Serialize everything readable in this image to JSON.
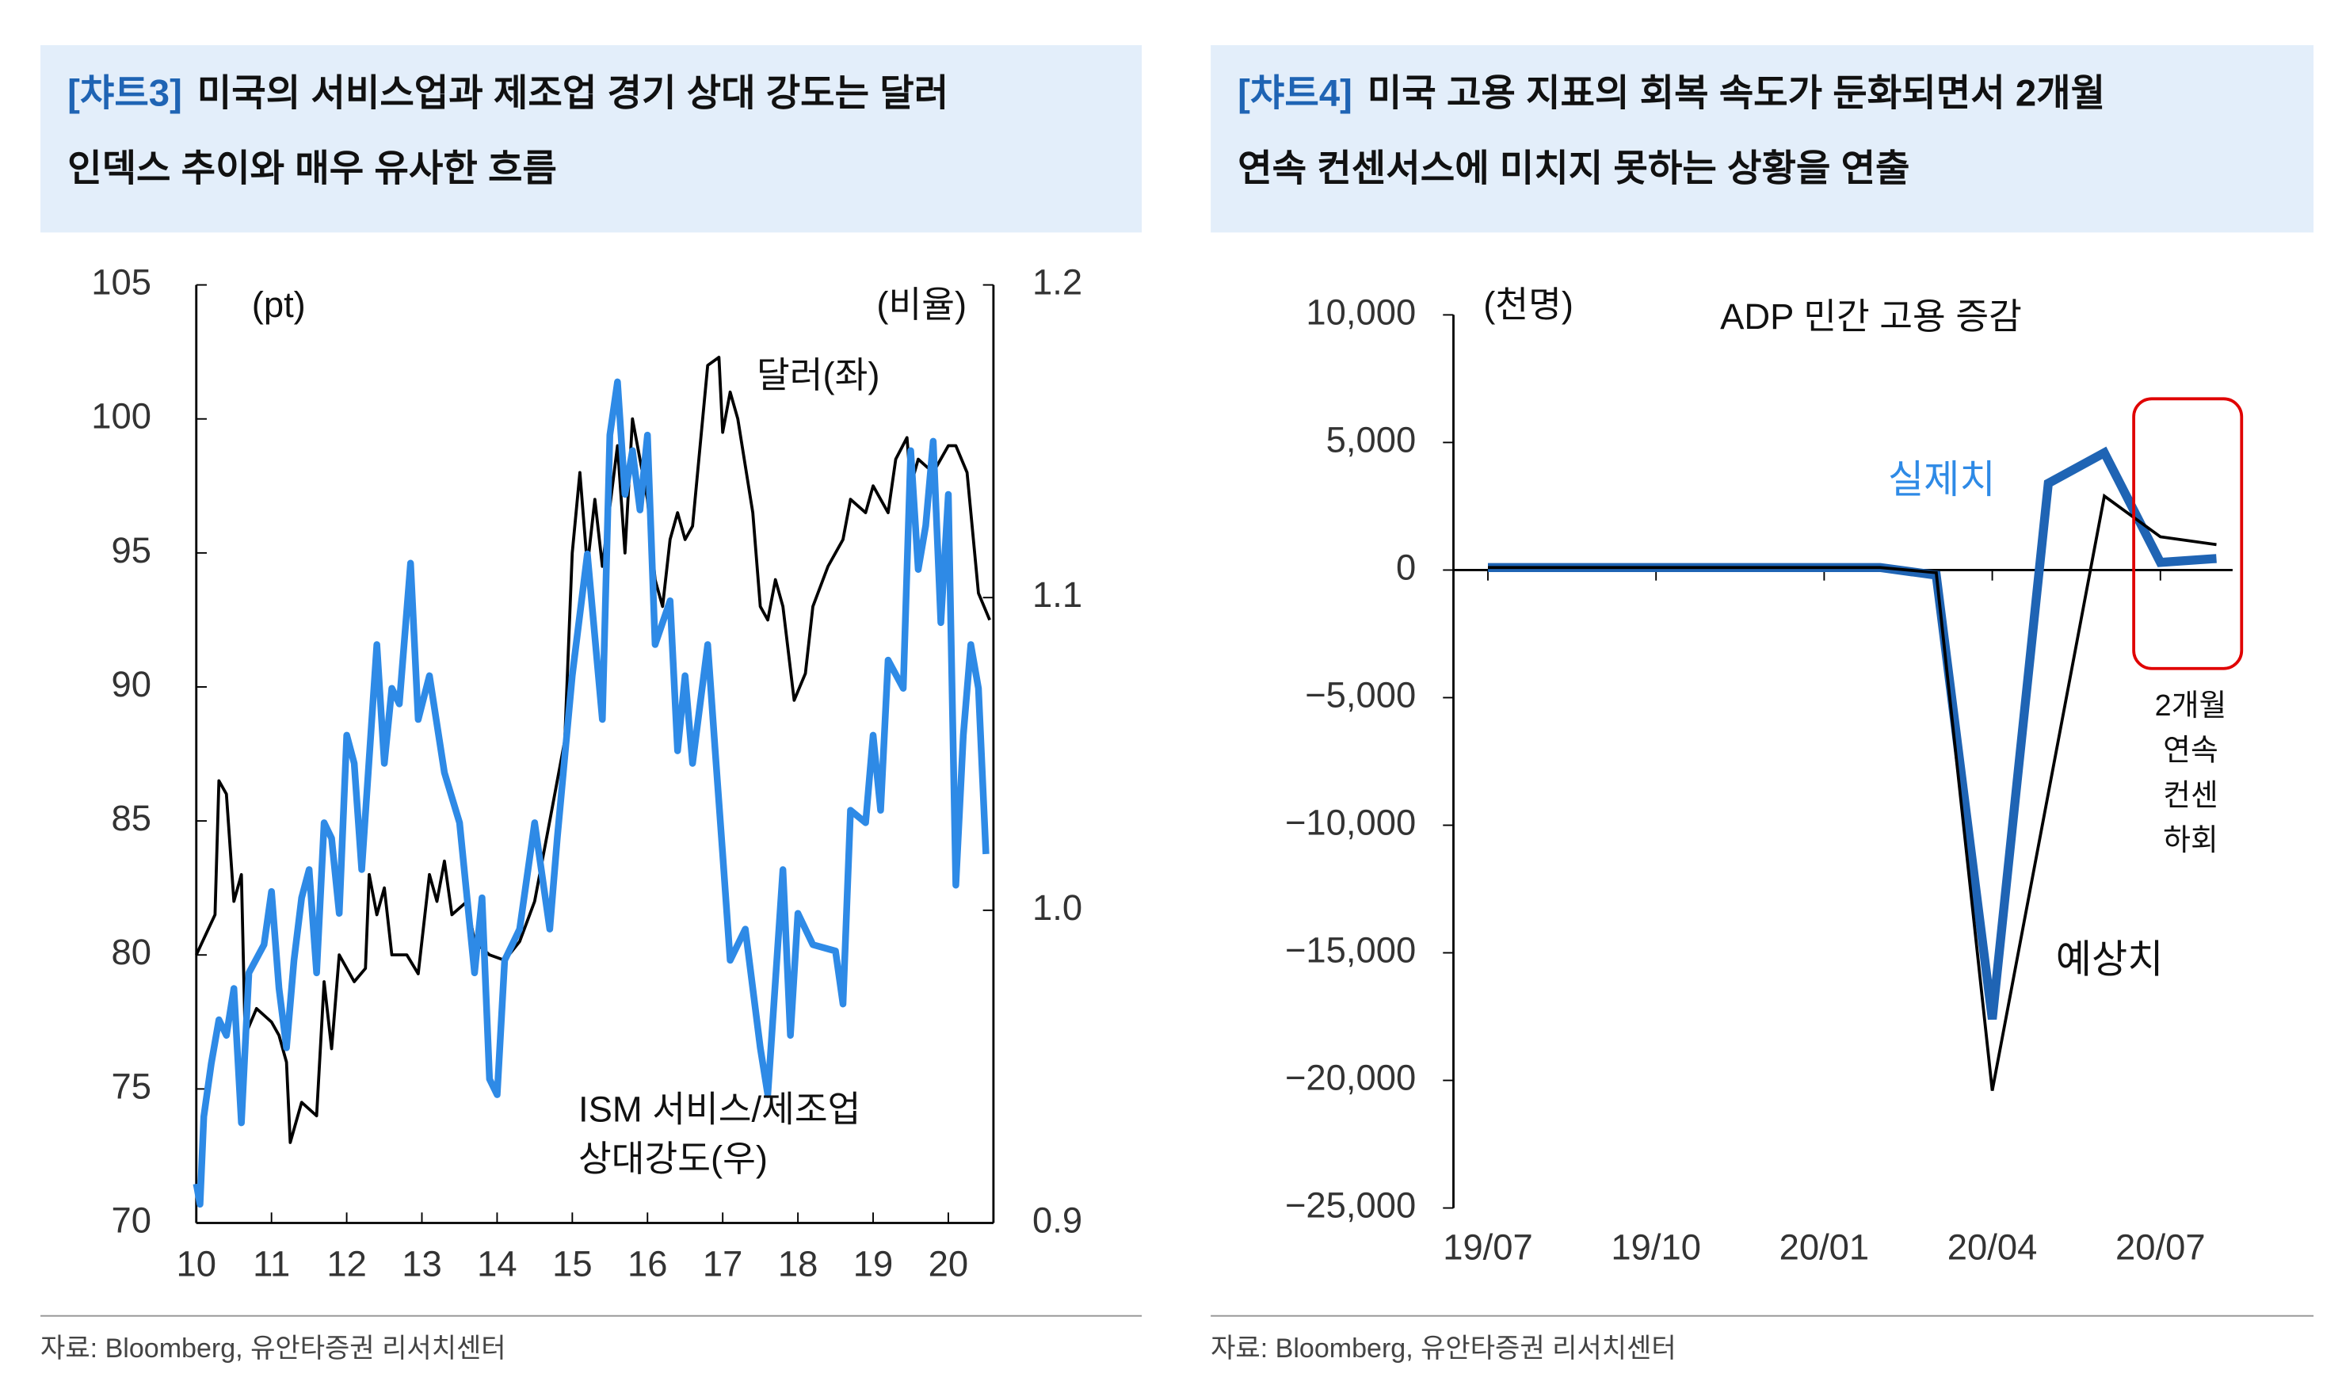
{
  "chart_data": [
    {
      "type": "line",
      "label": "[챠트3]",
      "title": [
        "미국의 서비스업과 제조업 경기 상대 강도는 달러",
        "인덱스 추이와 매우 유사한 흐름"
      ],
      "source": "자료: Bloomberg, 유안타증권 리서치센터",
      "annotations": [
        [
          "(pt)"
        ],
        [
          "(비율)"
        ],
        [
          "달러(좌)"
        ],
        [
          "ISM 서비스/제조업",
          "상대강도(우)"
        ]
      ],
      "xlim": [
        10,
        20.6
      ],
      "xticks": [
        10,
        11,
        12,
        13,
        14,
        15,
        16,
        17,
        18,
        19,
        20
      ],
      "ylim": [
        70,
        105
      ],
      "yticks": [
        70,
        75,
        80,
        85,
        90,
        95,
        100,
        105
      ],
      "y2lim": [
        0.9,
        1.2
      ],
      "y2ticks": [
        0.9,
        {
          "value": 1,
          "label": "1.0"
        },
        1.1,
        1.2
      ],
      "series": [
        {
          "name": "달러(좌)",
          "color": "#000000",
          "x": [
            10.0,
            10.25,
            10.3,
            10.4,
            10.5,
            10.6,
            10.65,
            10.8,
            11.0,
            11.1,
            11.2,
            11.25,
            11.4,
            11.6,
            11.7,
            11.8,
            11.9,
            12.1,
            12.25,
            12.3,
            12.4,
            12.5,
            12.6,
            12.8,
            12.95,
            13.1,
            13.2,
            13.3,
            13.4,
            13.6,
            13.7,
            13.9,
            14.1,
            14.3,
            14.5,
            14.7,
            14.9,
            15.0,
            15.1,
            15.2,
            15.3,
            15.4,
            15.6,
            15.7,
            15.8,
            15.9,
            16.0,
            16.1,
            16.2,
            16.3,
            16.4,
            16.5,
            16.6,
            16.8,
            16.95,
            17.0,
            17.1,
            17.2,
            17.4,
            17.5,
            17.6,
            17.7,
            17.8,
            17.95,
            18.1,
            18.2,
            18.4,
            18.6,
            18.7,
            18.9,
            19.0,
            19.2,
            19.3,
            19.45,
            19.5,
            19.6,
            19.8,
            20.0,
            20.1,
            20.25,
            20.4,
            20.55
          ],
          "values": [
            80,
            81.5,
            86.5,
            86,
            82,
            83,
            77,
            78,
            77.5,
            77,
            76,
            73,
            74.5,
            74,
            79,
            76.5,
            80,
            79,
            79.5,
            83,
            81.5,
            82.5,
            80,
            80,
            79.3,
            83,
            82,
            83.5,
            81.5,
            82,
            80.5,
            80,
            79.8,
            80.5,
            82,
            85,
            88,
            95,
            98,
            94.5,
            97,
            94.5,
            99,
            95,
            100,
            98.5,
            97,
            94,
            93,
            95.5,
            96.5,
            95.5,
            96,
            102,
            102.3,
            99.5,
            101,
            100,
            96.5,
            93,
            92.5,
            94,
            93,
            89.5,
            90.5,
            93,
            94.5,
            95.5,
            97,
            96.5,
            97.5,
            96.5,
            98.5,
            99.3,
            97.5,
            98.5,
            98,
            99,
            99,
            98,
            93.5,
            92.5
          ]
        },
        {
          "name": "ISM 서비스/제조업 상대강도(우)",
          "color": "#2e8ae6",
          "axis": "y2",
          "x": [
            10.0,
            10.05,
            10.1,
            10.2,
            10.3,
            10.4,
            10.5,
            10.6,
            10.7,
            10.9,
            11.0,
            11.1,
            11.2,
            11.3,
            11.4,
            11.5,
            11.6,
            11.7,
            11.8,
            11.9,
            12.0,
            12.1,
            12.2,
            12.4,
            12.5,
            12.6,
            12.7,
            12.85,
            12.95,
            13.1,
            13.3,
            13.5,
            13.7,
            13.8,
            13.9,
            14.0,
            14.1,
            14.3,
            14.5,
            14.7,
            14.8,
            15.0,
            15.2,
            15.4,
            15.5,
            15.6,
            15.7,
            15.8,
            15.9,
            16.0,
            16.1,
            16.3,
            16.4,
            16.5,
            16.6,
            16.8,
            16.9,
            17.0,
            17.1,
            17.3,
            17.5,
            17.6,
            17.8,
            17.9,
            18.0,
            18.2,
            18.5,
            18.6,
            18.7,
            18.9,
            19.0,
            19.1,
            19.2,
            19.4,
            19.5,
            19.6,
            19.7,
            19.8,
            19.9,
            20.0,
            20.1,
            20.2,
            20.3,
            20.4,
            20.5
          ],
          "values": [
            0.9125,
            0.906,
            0.934,
            0.951,
            0.965,
            0.96,
            0.975,
            0.932,
            0.98,
            0.989,
            1.006,
            0.975,
            0.956,
            0.984,
            1.004,
            1.013,
            0.98,
            1.028,
            1.023,
            0.999,
            1.056,
            1.047,
            1.013,
            1.085,
            1.047,
            1.071,
            1.066,
            1.111,
            1.061,
            1.075,
            1.044,
            1.028,
            0.98,
            1.004,
            0.946,
            0.941,
            0.984,
            0.994,
            1.028,
            0.994,
            1.023,
            1.075,
            1.114,
            1.061,
            1.152,
            1.169,
            1.133,
            1.147,
            1.128,
            1.152,
            1.085,
            1.099,
            1.051,
            1.075,
            1.047,
            1.085,
            1.051,
            1.018,
            0.984,
            0.994,
            0.956,
            0.941,
            1.013,
            0.96,
            0.999,
            0.989,
            0.987,
            0.97,
            1.032,
            1.028,
            1.056,
            1.032,
            1.08,
            1.071,
            1.147,
            1.109,
            1.123,
            1.15,
            1.092,
            1.133,
            1.008,
            1.056,
            1.085,
            1.071,
            1.018
          ]
        }
      ]
    },
    {
      "type": "line",
      "label": "[챠트4]",
      "title": [
        "미국 고용 지표의 회복 속도가 둔화되면서 2개월",
        "연속 컨센서스에 미치지 못하는 상황을 연출"
      ],
      "source": "자료: Bloomberg, 유안타증권 리서치센터",
      "annotations": [
        [
          "(천명)"
        ],
        [
          "ADP 민간 고용 증감"
        ],
        [
          "실제치"
        ],
        [
          "예상치"
        ],
        [
          "2개월",
          "연속",
          "컨센",
          "하회"
        ]
      ],
      "categories": [
        "19/07",
        null,
        null,
        "19/10",
        null,
        null,
        "20/01",
        null,
        null,
        "20/04",
        null,
        null,
        "20/07",
        null
      ],
      "ylim": [
        -25000,
        10000
      ],
      "yticks": [
        {
          "value": -25000,
          "label": "−25,000"
        },
        {
          "value": -20000,
          "label": "−20,000"
        },
        {
          "value": -15000,
          "label": "−15,000"
        },
        {
          "value": -10000,
          "label": "−10,000"
        },
        {
          "value": -5000,
          "label": "−5,000"
        },
        0,
        {
          "value": 5000,
          "label": "5,000"
        },
        {
          "value": 10000,
          "label": "10,000"
        }
      ],
      "negative_tick_color": "#e00000",
      "highlight_color": "#e00000",
      "series": [
        {
          "name": "실제치",
          "color": "#1f64b4",
          "values": [
            100,
            100,
            100,
            100,
            100,
            100,
            100,
            100,
            -200,
            -17600,
            3400,
            4600,
            300,
            450
          ]
        },
        {
          "name": "예상치",
          "color": "#000000",
          "values": [
            100,
            100,
            100,
            100,
            100,
            100,
            100,
            100,
            -100,
            -20400,
            -8750,
            2900,
            1300,
            1000
          ]
        }
      ]
    }
  ]
}
